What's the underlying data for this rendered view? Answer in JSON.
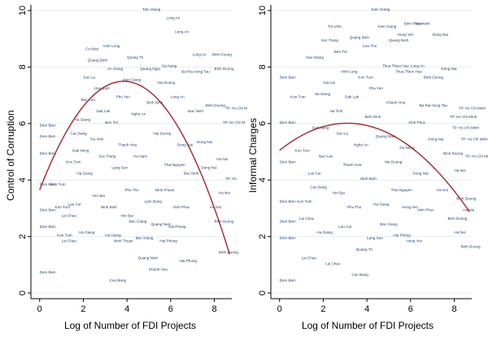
{
  "chart_data": [
    {
      "type": "scatter",
      "title": "",
      "xlabel": "Log of Number of FDI Projects",
      "ylabel": "Control of Corruption",
      "xlim": [
        -0.4,
        8.8
      ],
      "ylim": [
        -0.2,
        10.2
      ],
      "xticks": [
        0,
        2,
        4,
        6,
        8
      ],
      "yticks": [
        0,
        2,
        4,
        6,
        8,
        10
      ],
      "grid": true,
      "fit": {
        "type": "quadratic",
        "a": 3.65,
        "b": 2.0,
        "c": -0.26,
        "color": "#a3262a"
      },
      "points": [
        {
          "x": 0.0,
          "y": 5.9,
          "label": "Dien Bien"
        },
        {
          "x": 0.0,
          "y": 5.5,
          "label": "Dien Bien"
        },
        {
          "x": 0.0,
          "y": 3.8,
          "label": "Dien Bien"
        },
        {
          "x": 0.0,
          "y": 2.9,
          "label": "Dien Bien"
        },
        {
          "x": 0.0,
          "y": 2.3,
          "label": "Dien Bien"
        },
        {
          "x": 0.0,
          "y": 0.7,
          "label": "Dien Bien"
        },
        {
          "x": 0.0,
          "y": 4.9,
          "label": "Dien Bien"
        },
        {
          "x": 0.5,
          "y": 3.8,
          "label": "Kon Tum"
        },
        {
          "x": 0.7,
          "y": 3.0,
          "label": "Kon Tum"
        },
        {
          "x": 0.8,
          "y": 2.0,
          "label": "Kon Tum"
        },
        {
          "x": 1.0,
          "y": 2.7,
          "label": "Lai Chau"
        },
        {
          "x": 1.0,
          "y": 1.8,
          "label": "Lai Chau"
        },
        {
          "x": 1.2,
          "y": 4.6,
          "label": "Kon Tum"
        },
        {
          "x": 1.3,
          "y": 3.1,
          "label": "Lao Cai"
        },
        {
          "x": 1.4,
          "y": 5.6,
          "label": "Cao Bang"
        },
        {
          "x": 1.5,
          "y": 5.0,
          "label": "Dak Nong"
        },
        {
          "x": 1.6,
          "y": 6.1,
          "label": "Ha Giang"
        },
        {
          "x": 1.7,
          "y": 4.2,
          "label": "Ha Giang"
        },
        {
          "x": 1.8,
          "y": 2.1,
          "label": "Ha Giang"
        },
        {
          "x": 1.9,
          "y": 6.8,
          "label": "Bac Kan"
        },
        {
          "x": 2.0,
          "y": 7.6,
          "label": "Son La"
        },
        {
          "x": 2.1,
          "y": 8.6,
          "label": "Ca Mau"
        },
        {
          "x": 2.2,
          "y": 8.2,
          "label": "Quang Binh"
        },
        {
          "x": 2.3,
          "y": 5.4,
          "label": "Tra Vinh"
        },
        {
          "x": 2.4,
          "y": 3.4,
          "label": "Yen Bai"
        },
        {
          "x": 2.5,
          "y": 7.2,
          "label": "Hoa Binh"
        },
        {
          "x": 2.6,
          "y": 6.4,
          "label": "Dak Lak"
        },
        {
          "x": 2.7,
          "y": 4.8,
          "label": "Soc Trang"
        },
        {
          "x": 2.8,
          "y": 3.0,
          "label": "Ninh Binh"
        },
        {
          "x": 2.9,
          "y": 8.7,
          "label": "Vinh Long"
        },
        {
          "x": 3.0,
          "y": 6.0,
          "label": "Ben Tre"
        },
        {
          "x": 3.0,
          "y": 2.0,
          "label": "Ha Giang"
        },
        {
          "x": 3.1,
          "y": 7.9,
          "label": "An Giang"
        },
        {
          "x": 3.2,
          "y": 0.4,
          "label": "Cao Bang"
        },
        {
          "x": 3.3,
          "y": 4.4,
          "label": "Lang Son"
        },
        {
          "x": 3.4,
          "y": 1.8,
          "label": "Ninh Thuan"
        },
        {
          "x": 3.5,
          "y": 6.9,
          "label": "Phu Yen"
        },
        {
          "x": 3.6,
          "y": 5.2,
          "label": "Thanh Hoa"
        },
        {
          "x": 3.7,
          "y": 2.7,
          "label": "Yen Bai"
        },
        {
          "x": 3.8,
          "y": 7.5,
          "label": "Kien Giang"
        },
        {
          "x": 3.9,
          "y": 3.6,
          "label": "Phu Tho"
        },
        {
          "x": 4.0,
          "y": 8.3,
          "label": "Quang Tri"
        },
        {
          "x": 4.1,
          "y": 2.5,
          "label": "Bac Giang"
        },
        {
          "x": 4.2,
          "y": 6.3,
          "label": "Nghe An"
        },
        {
          "x": 4.3,
          "y": 4.8,
          "label": "Ha Nam"
        },
        {
          "x": 4.4,
          "y": 1.9,
          "label": "Bac Giang"
        },
        {
          "x": 4.5,
          "y": 1.2,
          "label": "Quang Ninh"
        },
        {
          "x": 4.6,
          "y": 7.9,
          "label": "Quang Ngai"
        },
        {
          "x": 4.7,
          "y": 10.0,
          "label": "Tien Giang"
        },
        {
          "x": 4.8,
          "y": 3.2,
          "label": "Lam Dong"
        },
        {
          "x": 4.9,
          "y": 6.7,
          "label": "Binh Dinh"
        },
        {
          "x": 5.0,
          "y": 0.8,
          "label": "Khanh Hoa"
        },
        {
          "x": 5.1,
          "y": 2.4,
          "label": "Quang Nam"
        },
        {
          "x": 5.2,
          "y": 5.6,
          "label": "Hai Duong"
        },
        {
          "x": 5.3,
          "y": 3.6,
          "label": "Binh Thuan"
        },
        {
          "x": 5.4,
          "y": 7.4,
          "label": "Hai Duong"
        },
        {
          "x": 5.5,
          "y": 1.8,
          "label": "Hai Phong"
        },
        {
          "x": 5.6,
          "y": 8.0,
          "label": "Da Nang"
        },
        {
          "x": 5.7,
          "y": 4.5,
          "label": "Thai Nguyen"
        },
        {
          "x": 5.8,
          "y": 9.7,
          "label": "Long An"
        },
        {
          "x": 5.9,
          "y": 2.3,
          "label": "Hai Phong"
        },
        {
          "x": 6.0,
          "y": 6.9,
          "label": "Long An"
        },
        {
          "x": 6.1,
          "y": 3.0,
          "label": "Vinh Phuc"
        },
        {
          "x": 6.2,
          "y": 9.2,
          "label": "Long An"
        },
        {
          "x": 6.3,
          "y": 5.2,
          "label": "Dong Nai"
        },
        {
          "x": 6.4,
          "y": 1.1,
          "label": "Hai Phong"
        },
        {
          "x": 6.5,
          "y": 7.8,
          "label": "Ba Ria-Vung Tau"
        },
        {
          "x": 6.6,
          "y": 4.2,
          "label": "Bac Ninh"
        },
        {
          "x": 6.8,
          "y": 6.4,
          "label": "Bac Ninh"
        },
        {
          "x": 7.0,
          "y": 8.4,
          "label": "Long An"
        },
        {
          "x": 7.2,
          "y": 5.3,
          "label": "Dong Nai"
        },
        {
          "x": 7.4,
          "y": 4.4,
          "label": "Dong Nai"
        },
        {
          "x": 7.6,
          "y": 6.6,
          "label": "Binh Duong"
        },
        {
          "x": 7.8,
          "y": 3.0,
          "label": "Ha Noi"
        },
        {
          "x": 7.9,
          "y": 8.4,
          "label": "Binh Duong"
        },
        {
          "x": 8.0,
          "y": 7.9,
          "label": "Binh Duong"
        },
        {
          "x": 8.0,
          "y": 2.5,
          "label": "Binh Duong"
        },
        {
          "x": 8.1,
          "y": 4.7,
          "label": "Ha Noi"
        },
        {
          "x": 8.2,
          "y": 3.5,
          "label": "Ha Noi"
        },
        {
          "x": 8.2,
          "y": 1.4,
          "label": "Binh Duong"
        },
        {
          "x": 8.4,
          "y": 6.0,
          "label": "TP. Ho Chi M"
        },
        {
          "x": 8.5,
          "y": 4.0,
          "label": "TP. Ho"
        },
        {
          "x": 8.5,
          "y": 6.5,
          "label": "TP. Ho Chi M"
        }
      ]
    },
    {
      "type": "scatter",
      "title": "",
      "xlabel": "Log of Number of FDI Projects",
      "ylabel": "Informal Charges",
      "xlim": [
        -0.4,
        8.8
      ],
      "ylim": [
        -0.2,
        10.2
      ],
      "xticks": [
        0,
        2,
        4,
        6,
        8
      ],
      "yticks": [
        0,
        2,
        4,
        6,
        8,
        10
      ],
      "grid": true,
      "fit": {
        "type": "quadratic",
        "a": 5.05,
        "b": 0.62,
        "c": -0.1,
        "color": "#a3262a"
      },
      "points": [
        {
          "x": 0.0,
          "y": 7.6,
          "label": "Dien Bien"
        },
        {
          "x": 0.0,
          "y": 6.0,
          "label": "Dien Bien"
        },
        {
          "x": 0.0,
          "y": 4.6,
          "label": "Dien Bien"
        },
        {
          "x": 0.0,
          "y": 3.2,
          "label": "Dien Bien"
        },
        {
          "x": 0.0,
          "y": 2.5,
          "label": "Dien Bien"
        },
        {
          "x": 0.0,
          "y": 1.9,
          "label": "Dien Bien"
        },
        {
          "x": 0.0,
          "y": 0.4,
          "label": "Dien Bien"
        },
        {
          "x": 0.5,
          "y": 6.9,
          "label": "Kon Tum"
        },
        {
          "x": 0.7,
          "y": 5.0,
          "label": "Kon Tum"
        },
        {
          "x": 0.8,
          "y": 3.2,
          "label": "Kon Tum"
        },
        {
          "x": 0.9,
          "y": 2.6,
          "label": "Lai Chau"
        },
        {
          "x": 1.0,
          "y": 1.2,
          "label": "Lai Chau"
        },
        {
          "x": 1.2,
          "y": 8.3,
          "label": "Hau Giang"
        },
        {
          "x": 1.3,
          "y": 4.2,
          "label": "Lao Cai"
        },
        {
          "x": 1.4,
          "y": 3.7,
          "label": "Cao Bang"
        },
        {
          "x": 1.5,
          "y": 5.8,
          "label": "Dak Nong"
        },
        {
          "x": 1.6,
          "y": 7.0,
          "label": "Ha Giang"
        },
        {
          "x": 1.7,
          "y": 2.1,
          "label": "Ha Giang"
        },
        {
          "x": 1.8,
          "y": 4.8,
          "label": "Bac Kan"
        },
        {
          "x": 1.9,
          "y": 8.9,
          "label": "Soc Trang"
        },
        {
          "x": 2.0,
          "y": 7.4,
          "label": "Gia Lai"
        },
        {
          "x": 2.1,
          "y": 1.0,
          "label": "Lai Chau"
        },
        {
          "x": 2.2,
          "y": 9.4,
          "label": "Tra Vinh"
        },
        {
          "x": 2.3,
          "y": 6.4,
          "label": "Ha Tinh"
        },
        {
          "x": 2.4,
          "y": 3.5,
          "label": "Yen Bai"
        },
        {
          "x": 2.5,
          "y": 8.5,
          "label": "Ben Tre"
        },
        {
          "x": 2.6,
          "y": 5.6,
          "label": "Son La"
        },
        {
          "x": 2.7,
          "y": 2.3,
          "label": "Lao Cai"
        },
        {
          "x": 2.8,
          "y": 7.8,
          "label": "Vinh Long"
        },
        {
          "x": 2.9,
          "y": 4.5,
          "label": "Thanh Hoa"
        },
        {
          "x": 3.0,
          "y": 6.9,
          "label": "Dak Lak"
        },
        {
          "x": 3.1,
          "y": 3.0,
          "label": "Phu Tho"
        },
        {
          "x": 3.2,
          "y": 9.0,
          "label": "Quang Binh"
        },
        {
          "x": 3.3,
          "y": 0.6,
          "label": "Cao Bang"
        },
        {
          "x": 3.4,
          "y": 5.2,
          "label": "Nghe An"
        },
        {
          "x": 3.5,
          "y": 1.5,
          "label": "Quang Tri"
        },
        {
          "x": 3.6,
          "y": 7.6,
          "label": "Kon Tum"
        },
        {
          "x": 3.7,
          "y": 4.0,
          "label": "Ninh Binh"
        },
        {
          "x": 3.8,
          "y": 8.7,
          "label": "Can Tho"
        },
        {
          "x": 3.9,
          "y": 6.2,
          "label": "Binh Dinh"
        },
        {
          "x": 4.0,
          "y": 1.9,
          "label": "Lang Son"
        },
        {
          "x": 4.1,
          "y": 7.2,
          "label": "Phu Yen"
        },
        {
          "x": 4.2,
          "y": 10.0,
          "label": "Kien Giang"
        },
        {
          "x": 4.3,
          "y": 3.1,
          "label": "Ha Giang"
        },
        {
          "x": 4.4,
          "y": 5.5,
          "label": "Quang Nam"
        },
        {
          "x": 4.5,
          "y": 9.4,
          "label": "Kien Giang"
        },
        {
          "x": 4.6,
          "y": 2.4,
          "label": "Bac Giang"
        },
        {
          "x": 4.7,
          "y": 8.0,
          "label": "Thua Thien Hue"
        },
        {
          "x": 4.8,
          "y": 4.6,
          "label": "Hai Duong"
        },
        {
          "x": 4.9,
          "y": 6.7,
          "label": "Khanh Hoa"
        },
        {
          "x": 5.0,
          "y": 8.9,
          "label": "Quang Ninh"
        },
        {
          "x": 5.1,
          "y": 3.6,
          "label": "Thai Nguyen"
        },
        {
          "x": 5.2,
          "y": 2.0,
          "label": "Hai Phong"
        },
        {
          "x": 5.3,
          "y": 7.8,
          "label": "Thua Thien Hue"
        },
        {
          "x": 5.4,
          "y": 9.1,
          "label": "Hung Yen"
        },
        {
          "x": 5.5,
          "y": 5.1,
          "label": "Da Nang"
        },
        {
          "x": 5.6,
          "y": 3.0,
          "label": "Hung Yen"
        },
        {
          "x": 5.7,
          "y": 9.5,
          "label": "Binh Phuoc"
        },
        {
          "x": 5.8,
          "y": 1.8,
          "label": "Hung Yen"
        },
        {
          "x": 5.9,
          "y": 6.0,
          "label": "Vinh Phuc"
        },
        {
          "x": 6.0,
          "y": 8.0,
          "label": "Long An"
        },
        {
          "x": 6.1,
          "y": 4.2,
          "label": "Dong Nai"
        },
        {
          "x": 6.2,
          "y": 9.5,
          "label": "Bac Ninh"
        },
        {
          "x": 6.3,
          "y": 2.9,
          "label": "Vinh Phuc"
        },
        {
          "x": 6.4,
          "y": 6.6,
          "label": "Ba Ria-Vung Tau"
        },
        {
          "x": 6.6,
          "y": 7.6,
          "label": "Binh Duong"
        },
        {
          "x": 6.8,
          "y": 5.4,
          "label": "Dong Nai"
        },
        {
          "x": 7.0,
          "y": 9.1,
          "label": "Dong Nai"
        },
        {
          "x": 7.2,
          "y": 3.6,
          "label": "Ha Noi"
        },
        {
          "x": 7.4,
          "y": 7.9,
          "label": "Dong Nai"
        },
        {
          "x": 7.5,
          "y": 4.9,
          "label": "Binh Duong"
        },
        {
          "x": 7.7,
          "y": 2.6,
          "label": "Binh Duong"
        },
        {
          "x": 7.8,
          "y": 6.2,
          "label": "TP. Ho Chi Minh"
        },
        {
          "x": 7.9,
          "y": 5.8,
          "label": "TP. Ho Chi Minh"
        },
        {
          "x": 8.0,
          "y": 4.3,
          "label": "Ha Noi"
        },
        {
          "x": 8.0,
          "y": 2.1,
          "label": "Ha Noi"
        },
        {
          "x": 8.1,
          "y": 3.3,
          "label": "Binh Duong"
        },
        {
          "x": 8.2,
          "y": 6.5,
          "label": "TP. Ho Chi Minh"
        },
        {
          "x": 8.3,
          "y": 5.4,
          "label": "TP. Ho Chi Minh"
        },
        {
          "x": 8.3,
          "y": 1.6,
          "label": "Binh Duong"
        },
        {
          "x": 8.4,
          "y": 2.9,
          "label": "Ha Noi"
        },
        {
          "x": 8.5,
          "y": 4.8,
          "label": "TP. Ho Chi Minh"
        }
      ]
    }
  ]
}
